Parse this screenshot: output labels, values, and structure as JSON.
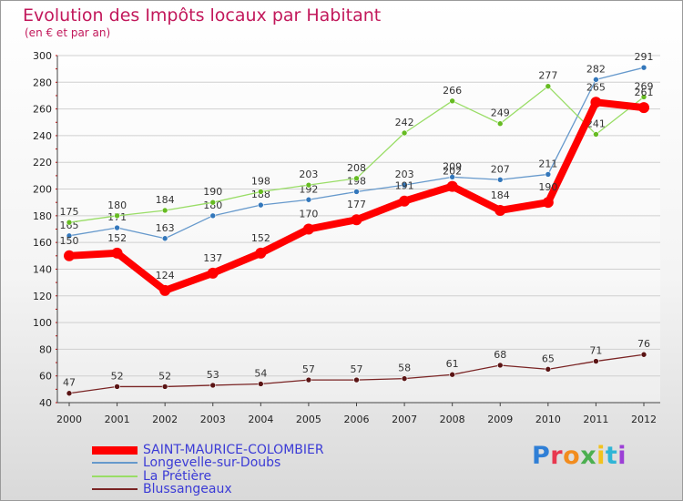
{
  "header": {
    "title": "Evolution des Impôts locaux par Habitant",
    "subtitle": "(en € et par an)"
  },
  "chart_data": {
    "type": "line",
    "title": "Evolution des Impôts locaux par Habitant",
    "subtitle": "(en € et par an)",
    "xlabel": "",
    "ylabel": "",
    "x": [
      "2000",
      "2001",
      "2002",
      "2003",
      "2004",
      "2005",
      "2006",
      "2007",
      "2008",
      "2009",
      "2010",
      "2011",
      "2012"
    ],
    "ylim": [
      40,
      300
    ],
    "yticks": [
      40,
      60,
      80,
      100,
      120,
      140,
      160,
      180,
      200,
      220,
      240,
      260,
      280,
      300
    ],
    "grid": true,
    "legend_position": "bottom-left",
    "series": [
      {
        "name": "SAINT-MAURICE-COLOMBIER",
        "color": "#ff0000",
        "marker_color": "#ff0000",
        "width": "thick",
        "values": [
          150,
          152,
          124,
          137,
          152,
          170,
          177,
          191,
          202,
          184,
          190,
          265,
          261
        ],
        "labels": [
          "150",
          "152",
          "124",
          "137",
          "152",
          "170",
          "177",
          "191",
          "202",
          "184",
          "190",
          "265",
          "261"
        ]
      },
      {
        "name": "Longevelle-sur-Doubs",
        "color": "#6699cc",
        "marker_color": "#3377bb",
        "width": "thin",
        "values": [
          165,
          171,
          163,
          180,
          188,
          192,
          198,
          203,
          209,
          207,
          211,
          282,
          291
        ],
        "labels": [
          "165",
          "171",
          "163",
          "180",
          "188",
          "192",
          "198",
          "203",
          "209",
          "207",
          "211",
          "282",
          "291"
        ]
      },
      {
        "name": "La Prétière",
        "color": "#99dd66",
        "marker_color": "#66bb22",
        "width": "thin",
        "values": [
          175,
          180,
          184,
          190,
          198,
          203,
          208,
          242,
          266,
          249,
          277,
          241,
          269
        ],
        "labels": [
          "175",
          "180",
          "184",
          "190",
          "198",
          "203",
          "208",
          "242",
          "266",
          "249",
          "277",
          "241",
          "269"
        ]
      },
      {
        "name": "Blussangeaux",
        "color": "#7a2424",
        "marker_color": "#5a1414",
        "width": "thin",
        "values": [
          47,
          52,
          52,
          53,
          54,
          57,
          57,
          58,
          61,
          68,
          65,
          71,
          76
        ],
        "labels": [
          "47",
          "52",
          "52",
          "53",
          "54",
          "57",
          "57",
          "58",
          "61",
          "68",
          "65",
          "71",
          "76"
        ]
      }
    ]
  },
  "legend": [
    {
      "label": "SAINT-MAURICE-COLOMBIER",
      "color": "#ff0000"
    },
    {
      "label": "Longevelle-sur-Doubs",
      "color": "#6699cc"
    },
    {
      "label": "La Prétière",
      "color": "#99dd66"
    },
    {
      "label": "Blussangeaux",
      "color": "#7a2424"
    }
  ],
  "logo": {
    "text": "Proxiti",
    "colors": [
      "#2f7fd6",
      "#e8384f",
      "#f28c1e",
      "#4caf50",
      "#f2c21e",
      "#2fb5d6",
      "#9c3fd6"
    ]
  }
}
